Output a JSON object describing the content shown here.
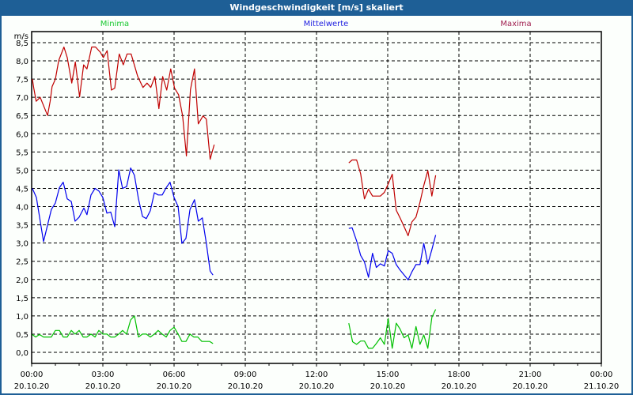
{
  "window": {
    "title": "Windgeschwindigkeit [m/s] skaliert"
  },
  "chart_data": {
    "type": "line",
    "title": "Windgeschwindigkeit [m/s] skaliert",
    "ylabel": "m/s",
    "xlabel": "",
    "ylim": [
      0,
      8.5
    ],
    "xlim_hours": [
      0,
      24
    ],
    "grid": true,
    "legend_placement": "top",
    "y_ticks": [
      "0,0",
      "0,5",
      "1,0",
      "1,5",
      "2,0",
      "2,5",
      "3,0",
      "3,5",
      "4,0",
      "4,5",
      "5,0",
      "5,5",
      "6,0",
      "6,5",
      "7,0",
      "7,5",
      "8,0",
      "8,5"
    ],
    "x_ticks": [
      {
        "time": "00:00",
        "date": "20.10.20"
      },
      {
        "time": "03:00",
        "date": "20.10.20"
      },
      {
        "time": "06:00",
        "date": "20.10.20"
      },
      {
        "time": "09:00",
        "date": "20.10.20"
      },
      {
        "time": "12:00",
        "date": "20.10.20"
      },
      {
        "time": "15:00",
        "date": "20.10.20"
      },
      {
        "time": "18:00",
        "date": "20.10.20"
      },
      {
        "time": "21:00",
        "date": "20.10.20"
      },
      {
        "time": "00:00",
        "date": "21.10.20"
      }
    ],
    "series": [
      {
        "name": "Minima",
        "color": "#00c000",
        "segments": [
          [
            [
              0.02,
              0.49
            ],
            [
              0.17,
              0.42
            ],
            [
              0.33,
              0.49
            ],
            [
              0.5,
              0.42
            ],
            [
              0.83,
              0.42
            ],
            [
              1.0,
              0.6
            ],
            [
              1.17,
              0.6
            ],
            [
              1.33,
              0.42
            ],
            [
              1.5,
              0.42
            ],
            [
              1.67,
              0.6
            ],
            [
              1.83,
              0.5
            ],
            [
              2.0,
              0.6
            ],
            [
              2.17,
              0.42
            ],
            [
              2.33,
              0.42
            ],
            [
              2.5,
              0.5
            ],
            [
              2.67,
              0.42
            ],
            [
              2.83,
              0.6
            ],
            [
              3.0,
              0.5
            ],
            [
              3.17,
              0.5
            ],
            [
              3.33,
              0.42
            ],
            [
              3.5,
              0.42
            ],
            [
              3.67,
              0.5
            ],
            [
              3.83,
              0.6
            ],
            [
              4.0,
              0.5
            ],
            [
              4.17,
              0.89
            ],
            [
              4.33,
              1.0
            ],
            [
              4.5,
              0.42
            ],
            [
              4.67,
              0.5
            ],
            [
              4.83,
              0.5
            ],
            [
              5.0,
              0.42
            ],
            [
              5.17,
              0.5
            ],
            [
              5.33,
              0.6
            ],
            [
              5.5,
              0.5
            ],
            [
              5.67,
              0.42
            ],
            [
              5.83,
              0.6
            ],
            [
              6.0,
              0.69
            ],
            [
              6.17,
              0.5
            ],
            [
              6.33,
              0.3
            ],
            [
              6.5,
              0.3
            ],
            [
              6.67,
              0.5
            ],
            [
              6.83,
              0.42
            ],
            [
              7.0,
              0.42
            ],
            [
              7.17,
              0.3
            ],
            [
              7.5,
              0.3
            ],
            [
              7.64,
              0.24
            ]
          ],
          [
            [
              13.36,
              0.8
            ],
            [
              13.52,
              0.29
            ],
            [
              13.69,
              0.22
            ],
            [
              13.86,
              0.31
            ],
            [
              14.02,
              0.31
            ],
            [
              14.19,
              0.11
            ],
            [
              14.36,
              0.11
            ],
            [
              14.52,
              0.24
            ],
            [
              14.69,
              0.4
            ],
            [
              14.86,
              0.22
            ],
            [
              15.02,
              0.93
            ],
            [
              15.19,
              0.11
            ],
            [
              15.36,
              0.8
            ],
            [
              15.52,
              0.64
            ],
            [
              15.69,
              0.4
            ],
            [
              15.86,
              0.48
            ],
            [
              16.02,
              0.11
            ],
            [
              16.19,
              0.71
            ],
            [
              16.36,
              0.22
            ],
            [
              16.52,
              0.48
            ],
            [
              16.69,
              0.11
            ],
            [
              16.86,
              0.96
            ],
            [
              17.02,
              1.18
            ]
          ]
        ]
      },
      {
        "name": "Mittelwerte",
        "color": "#0000ee",
        "segments": [
          [
            [
              0.03,
              4.5
            ],
            [
              0.2,
              4.25
            ],
            [
              0.5,
              3.04
            ],
            [
              0.83,
              3.92
            ],
            [
              1.0,
              4.1
            ],
            [
              1.17,
              4.52
            ],
            [
              1.33,
              4.67
            ],
            [
              1.5,
              4.21
            ],
            [
              1.67,
              4.14
            ],
            [
              1.83,
              3.6
            ],
            [
              2.0,
              3.71
            ],
            [
              2.2,
              3.96
            ],
            [
              2.33,
              3.78
            ],
            [
              2.5,
              4.32
            ],
            [
              2.67,
              4.5
            ],
            [
              2.83,
              4.43
            ],
            [
              3.0,
              4.25
            ],
            [
              3.17,
              3.82
            ],
            [
              3.33,
              3.85
            ],
            [
              3.5,
              3.45
            ],
            [
              3.67,
              5.01
            ],
            [
              3.83,
              4.5
            ],
            [
              4.0,
              4.55
            ],
            [
              4.17,
              5.06
            ],
            [
              4.33,
              4.86
            ],
            [
              4.5,
              4.21
            ],
            [
              4.67,
              3.73
            ],
            [
              4.83,
              3.67
            ],
            [
              5.0,
              3.89
            ],
            [
              5.17,
              4.38
            ],
            [
              5.33,
              4.32
            ],
            [
              5.5,
              4.32
            ],
            [
              5.67,
              4.52
            ],
            [
              5.83,
              4.67
            ],
            [
              6.0,
              4.25
            ],
            [
              6.17,
              4.0
            ],
            [
              6.33,
              2.99
            ],
            [
              6.5,
              3.13
            ],
            [
              6.67,
              3.92
            ],
            [
              6.86,
              4.19
            ],
            [
              7.02,
              3.6
            ],
            [
              7.19,
              3.69
            ],
            [
              7.36,
              2.99
            ],
            [
              7.52,
              2.23
            ],
            [
              7.64,
              2.12
            ]
          ],
          [
            [
              13.36,
              3.4
            ],
            [
              13.5,
              3.42
            ],
            [
              13.69,
              3.06
            ],
            [
              13.86,
              2.66
            ],
            [
              14.02,
              2.48
            ],
            [
              14.19,
              2.06
            ],
            [
              14.36,
              2.72
            ],
            [
              14.52,
              2.33
            ],
            [
              14.69,
              2.43
            ],
            [
              14.86,
              2.37
            ],
            [
              15.02,
              2.79
            ],
            [
              15.19,
              2.72
            ],
            [
              15.36,
              2.41
            ],
            [
              15.52,
              2.26
            ],
            [
              15.86,
              1.99
            ],
            [
              16.02,
              2.21
            ],
            [
              16.19,
              2.41
            ],
            [
              16.36,
              2.41
            ],
            [
              16.52,
              2.99
            ],
            [
              16.69,
              2.43
            ],
            [
              16.86,
              2.82
            ],
            [
              17.02,
              3.22
            ]
          ]
        ]
      },
      {
        "name": "Maxima",
        "color": "#c00000",
        "segments": [
          [
            [
              0.03,
              7.5
            ],
            [
              0.09,
              7.25
            ],
            [
              0.19,
              6.89
            ],
            [
              0.36,
              7.0
            ],
            [
              0.67,
              6.5
            ],
            [
              0.78,
              6.89
            ],
            [
              0.86,
              7.29
            ],
            [
              1.0,
              7.5
            ],
            [
              1.14,
              8.01
            ],
            [
              1.36,
              8.38
            ],
            [
              1.5,
              8.09
            ],
            [
              1.69,
              7.39
            ],
            [
              1.84,
              7.97
            ],
            [
              2.02,
              7.01
            ],
            [
              2.19,
              7.89
            ],
            [
              2.33,
              7.78
            ],
            [
              2.53,
              8.38
            ],
            [
              2.69,
              8.38
            ],
            [
              2.89,
              8.24
            ],
            [
              3.02,
              8.09
            ],
            [
              3.18,
              8.28
            ],
            [
              3.36,
              7.2
            ],
            [
              3.5,
              7.25
            ],
            [
              3.69,
              8.19
            ],
            [
              3.86,
              7.89
            ],
            [
              4.02,
              8.19
            ],
            [
              4.19,
              8.19
            ],
            [
              4.47,
              7.57
            ],
            [
              4.69,
              7.27
            ],
            [
              4.86,
              7.39
            ],
            [
              5.02,
              7.27
            ],
            [
              5.19,
              7.57
            ],
            [
              5.36,
              6.69
            ],
            [
              5.52,
              7.57
            ],
            [
              5.69,
              7.2
            ],
            [
              5.86,
              7.78
            ],
            [
              6.02,
              7.25
            ],
            [
              6.19,
              7.07
            ],
            [
              6.36,
              6.49
            ],
            [
              6.52,
              5.39
            ],
            [
              6.69,
              7.21
            ],
            [
              6.86,
              7.78
            ],
            [
              7.02,
              6.27
            ],
            [
              7.22,
              6.49
            ],
            [
              7.36,
              6.4
            ],
            [
              7.52,
              5.3
            ],
            [
              7.69,
              5.7
            ]
          ],
          [
            [
              13.36,
              5.2
            ],
            [
              13.5,
              5.28
            ],
            [
              13.69,
              5.28
            ],
            [
              13.86,
              4.9
            ],
            [
              14.02,
              4.21
            ],
            [
              14.19,
              4.48
            ],
            [
              14.36,
              4.29
            ],
            [
              14.69,
              4.29
            ],
            [
              14.86,
              4.39
            ],
            [
              15.02,
              4.62
            ],
            [
              15.19,
              4.89
            ],
            [
              15.36,
              3.9
            ],
            [
              15.52,
              3.69
            ],
            [
              15.69,
              3.45
            ],
            [
              15.86,
              3.2
            ],
            [
              16.02,
              3.58
            ],
            [
              16.19,
              3.71
            ],
            [
              16.36,
              4.12
            ],
            [
              16.52,
              4.58
            ],
            [
              16.69,
              4.99
            ],
            [
              16.86,
              4.29
            ],
            [
              17.02,
              4.86
            ]
          ]
        ]
      }
    ],
    "legend": [
      {
        "label": "Minima",
        "color": "#19c830"
      },
      {
        "label": "Mittelwerte",
        "color": "#2020e0"
      },
      {
        "label": "Maxima",
        "color": "#a02050"
      }
    ]
  }
}
